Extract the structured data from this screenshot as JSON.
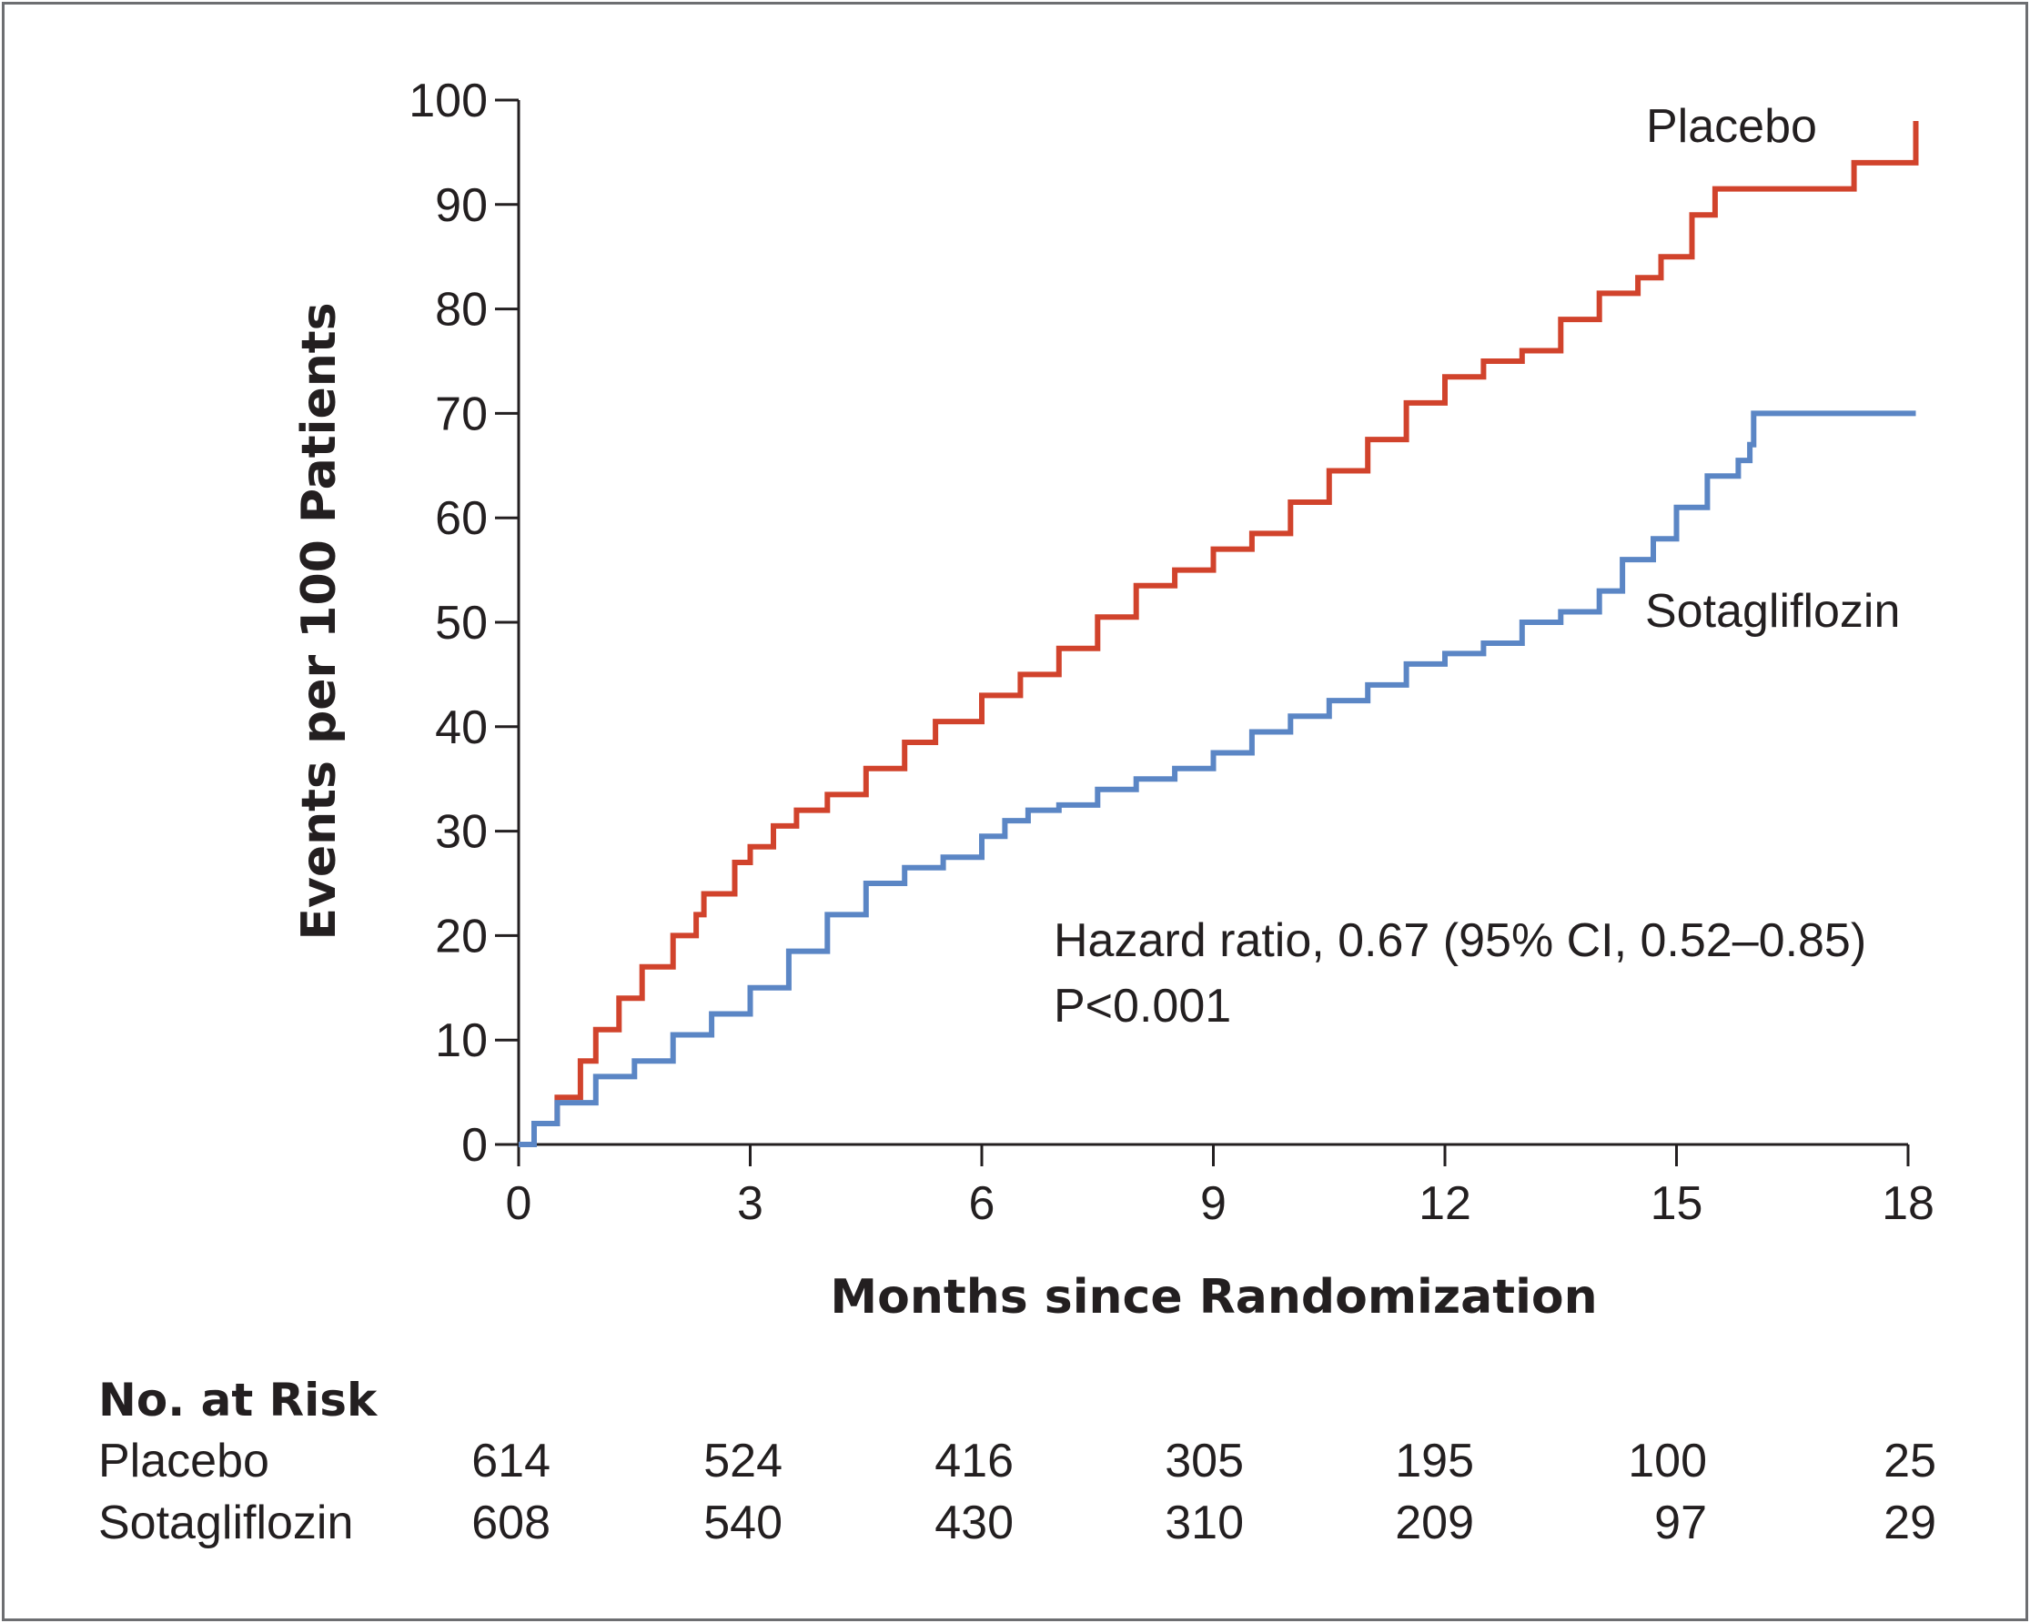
{
  "chart_data": {
    "type": "line",
    "subtype": "kaplan-meier cumulative incidence",
    "xlabel": "Months since Randomization",
    "ylabel": "Events per 100 Patients",
    "xlim": [
      0,
      18
    ],
    "ylim": [
      0,
      100
    ],
    "xticks": [
      0,
      3,
      6,
      9,
      12,
      15,
      18
    ],
    "yticks": [
      0,
      10,
      20,
      30,
      40,
      50,
      60,
      70,
      80,
      90,
      100
    ],
    "grid": false,
    "annotations": {
      "hazard_ratio": "Hazard ratio, 0.67 (95% CI, 0.52–0.85)",
      "p_value": "P<0.001"
    },
    "series": [
      {
        "name": "Placebo",
        "color": "#d1432c",
        "label_position": "top-right",
        "x": [
          0,
          0.2,
          0.5,
          0.8,
          1.0,
          1.3,
          1.6,
          2.0,
          2.3,
          2.4,
          2.8,
          3.0,
          3.3,
          3.6,
          4.0,
          4.5,
          5.0,
          5.4,
          6.0,
          6.5,
          7.0,
          7.5,
          8.0,
          8.5,
          9.0,
          9.5,
          10.0,
          10.5,
          11.0,
          11.5,
          12.0,
          12.5,
          13.0,
          13.5,
          14.0,
          14.5,
          14.8,
          15.2,
          15.5,
          16.0,
          16.5,
          17.0,
          17.3,
          17.6,
          17.9,
          18.1,
          18.1
        ],
        "y": [
          0,
          2,
          4.5,
          8,
          11,
          14,
          17,
          20,
          22,
          24,
          27,
          28.5,
          30.5,
          32,
          33.5,
          36,
          38.5,
          40.5,
          43,
          45,
          47.5,
          50.5,
          53.5,
          55,
          57,
          58.5,
          61.5,
          64.5,
          67.5,
          71,
          73.5,
          75,
          76,
          79,
          81.5,
          83,
          85,
          89,
          91.5,
          91.5,
          91.5,
          91.5,
          94,
          94,
          94,
          94,
          98
        ]
      },
      {
        "name": "Sotagliflozin",
        "color": "#5b86c5",
        "label_position": "right",
        "x": [
          0,
          0.2,
          0.5,
          1.0,
          1.5,
          2.0,
          2.5,
          3.0,
          3.5,
          4.0,
          4.5,
          5.0,
          5.5,
          6.0,
          6.3,
          6.6,
          7.0,
          7.5,
          8.0,
          8.5,
          9.0,
          9.5,
          10.0,
          10.5,
          11.0,
          11.5,
          12.0,
          12.5,
          13.0,
          13.5,
          14.0,
          14.3,
          14.7,
          15.0,
          15.4,
          15.8,
          15.95,
          16.0,
          16.5,
          17.0,
          17.5,
          18.1
        ],
        "y": [
          0,
          2,
          4,
          6.5,
          8,
          10.5,
          12.5,
          15,
          18.5,
          22,
          25,
          26.5,
          27.5,
          29.5,
          31,
          32,
          32.5,
          34,
          35,
          36,
          37.5,
          39.5,
          41,
          42.5,
          44,
          46,
          47,
          48,
          50,
          51,
          53,
          56,
          58,
          61,
          64,
          65.5,
          67,
          70,
          70,
          70,
          70,
          70
        ]
      }
    ],
    "risk_table": {
      "title": "No. at Risk",
      "time_points": [
        0,
        3,
        6,
        9,
        12,
        15,
        18
      ],
      "rows": [
        {
          "label": "Placebo",
          "values": [
            "614",
            "524",
            "416",
            "305",
            "195",
            "100",
            "25"
          ]
        },
        {
          "label": "Sotagliflozin",
          "values": [
            "608",
            "540",
            "430",
            "310",
            "209",
            "97",
            "29"
          ]
        }
      ]
    }
  }
}
